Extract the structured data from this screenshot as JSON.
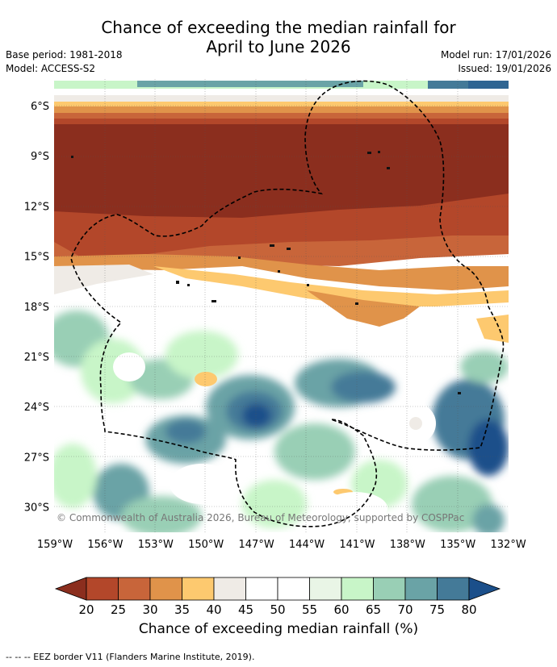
{
  "title_line1": "Chance of exceeding the median rainfall for",
  "title_line2": "April to June 2026",
  "base_period": "Base period: 1981-2018",
  "model": "Model: ACCESS-S2",
  "model_run": "Model run: 17/01/2026",
  "issued": "Issued: 19/01/2026",
  "copyright": "© Commonwealth of Australia 2026, Bureau of Meteorology, supported by COSPPac",
  "lat_labels": [
    "6°S",
    "9°S",
    "12°S",
    "15°S",
    "18°S",
    "21°S",
    "24°S",
    "27°S",
    "30°S"
  ],
  "lon_labels": [
    "159°W",
    "156°W",
    "153°W",
    "150°W",
    "147°W",
    "144°W",
    "141°W",
    "138°W",
    "135°W",
    "132°W"
  ],
  "colorbar": {
    "ticks": [
      "20",
      "25",
      "30",
      "35",
      "40",
      "45",
      "50",
      "55",
      "60",
      "65",
      "70",
      "75",
      "80"
    ],
    "colors": [
      "#8b2e1e",
      "#b3472a",
      "#c8653a",
      "#e0934a",
      "#fdc96f",
      "#efebe6",
      "#ffffff",
      "#ffffff",
      "#e9f5e6",
      "#c8f5c8",
      "#99cfb5",
      "#6aa3a6",
      "#447a98",
      "#1b4f8a"
    ],
    "label": "Chance of exceeding median rainfall (%)"
  },
  "footnote": "--  --  -- EEZ border V11 (Flanders Marine Institute, 2019)."
}
